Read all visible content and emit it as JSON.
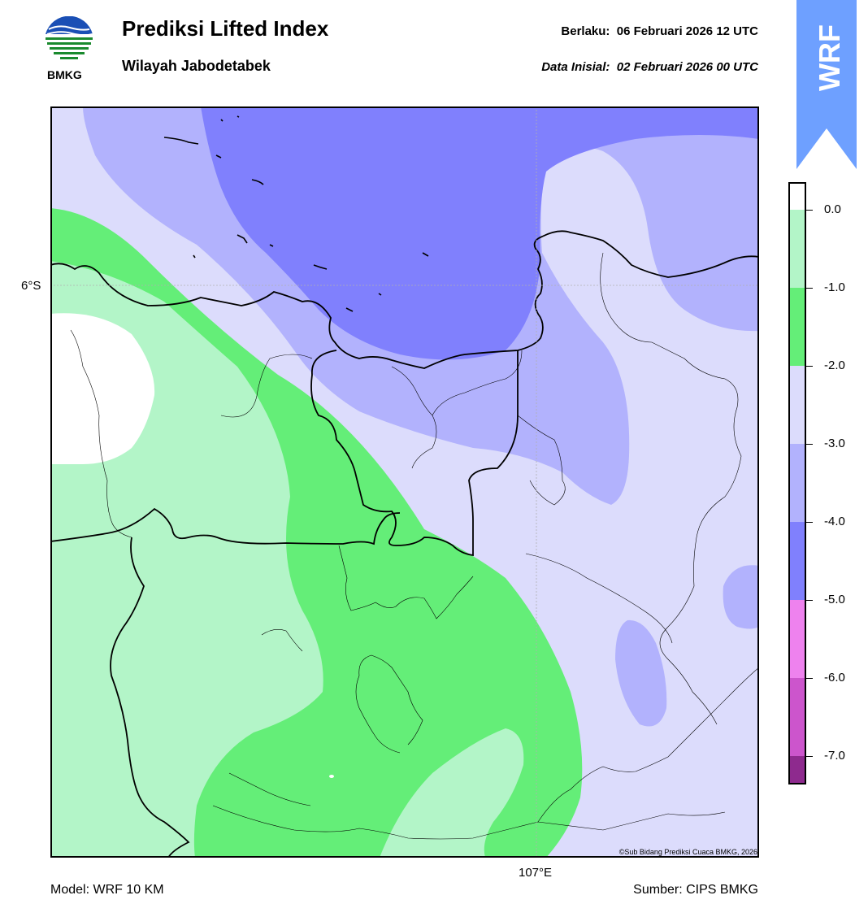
{
  "header": {
    "title": "Prediksi Lifted Index",
    "subtitle": "Wilayah Jabodetabek",
    "valid_label": "Berlaku:  06 Februari 2026 12 UTC",
    "init_label": "Data Inisial:  02 Februari 2026 00 UTC",
    "logo_text": "BMKG",
    "badge_text": "WRF"
  },
  "map": {
    "lat_label": "6°S",
    "lon_label": "107°E",
    "credit": "©Sub Bidang Prediksi Cuaca BMKG, 2026",
    "colors": {
      "level_0": "#ffffff",
      "level_1": "#b3f5c8",
      "level_2": "#64ee78",
      "level_3": "#dcdcfc",
      "level_4": "#b2b2fd",
      "level_5": "#8080fd",
      "boundary": "#000000"
    }
  },
  "colorbar": {
    "labels": [
      "0.0",
      "-1.0",
      "-2.0",
      "-3.0",
      "-4.0",
      "-5.0",
      "-6.0",
      "-7.0"
    ],
    "colors": [
      "#ffffff",
      "#b3f5c8",
      "#64ee78",
      "#dcdcfc",
      "#b2b2fd",
      "#8080fd",
      "#ee82ee",
      "#cc55cc",
      "#8e2a8e"
    ]
  },
  "footer": {
    "model": "Model: WRF 10 KM",
    "source": "Sumber: CIPS BMKG"
  }
}
